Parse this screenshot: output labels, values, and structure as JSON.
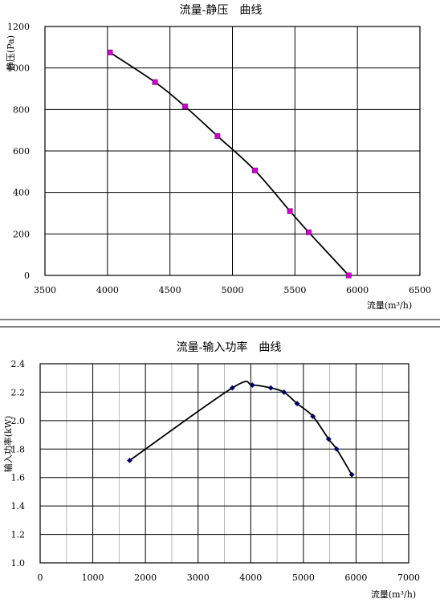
{
  "chart_data": [
    {
      "type": "line",
      "title": "流量-静压　曲线",
      "xlabel": "流量(m³/h)",
      "ylabel": "静压(Pa)",
      "xlim": [
        3500,
        6500
      ],
      "ylim": [
        0,
        1200
      ],
      "xticks": [
        "3500",
        "4000",
        "4500",
        "5000",
        "5500",
        "6000",
        "6500"
      ],
      "yticks": [
        "0",
        "200",
        "400",
        "600",
        "800",
        "1000",
        "1200"
      ],
      "grid": true,
      "marker": "square",
      "marker_color": "#cc00cc",
      "line_color": "#000000",
      "x": [
        4020,
        4380,
        4620,
        4880,
        5180,
        5460,
        5610,
        5930
      ],
      "y": [
        1075,
        932,
        815,
        672,
        506,
        310,
        208,
        0
      ]
    },
    {
      "type": "line",
      "title": "流量-输入功率　曲线",
      "xlabel": "流量(m³/h)",
      "ylabel": "输入功率(kW)",
      "xlim": [
        0,
        7000
      ],
      "ylim": [
        1.0,
        2.4
      ],
      "xticks": [
        "0",
        "1000",
        "2000",
        "3000",
        "4000",
        "5000",
        "6000",
        "7000"
      ],
      "yticks": [
        "1.0",
        "1.2",
        "1.4",
        "1.6",
        "1.8",
        "2.0",
        "2.2",
        "2.4"
      ],
      "grid": true,
      "marker": "diamond",
      "marker_color": "#000066",
      "line_color": "#000000",
      "x": [
        1700,
        3650,
        4030,
        4380,
        4630,
        4880,
        5180,
        5480,
        5630,
        5920
      ],
      "y": [
        1.72,
        2.23,
        2.25,
        2.23,
        2.2,
        2.12,
        2.03,
        1.87,
        1.8,
        1.62
      ]
    }
  ]
}
